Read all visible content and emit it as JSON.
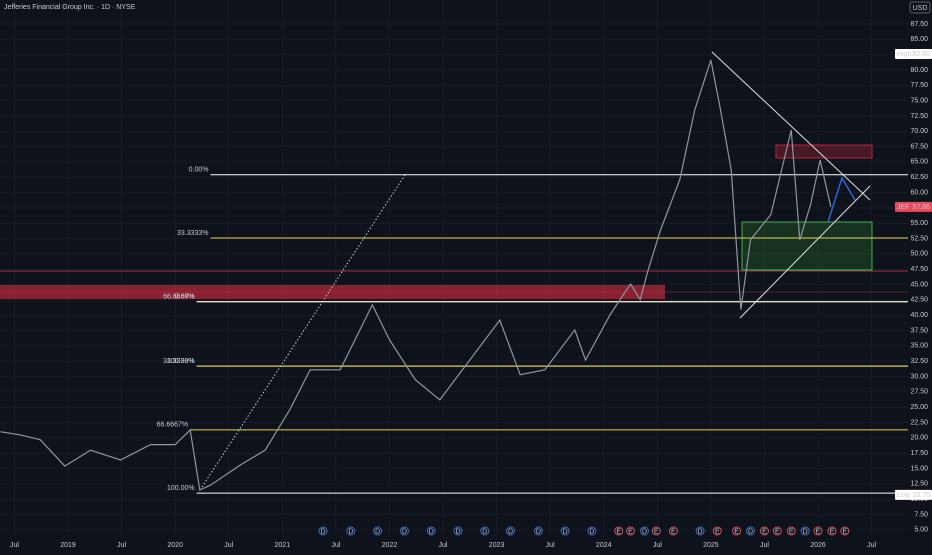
{
  "chart_data": {
    "type": "line",
    "title": "Jefferies Financial Group Inc. · 1D · NYSE",
    "currency": "USD",
    "xlim": [
      2018.365,
      2026.84
    ],
    "ylim": [
      4,
      91.4
    ],
    "xticks": [
      {
        "value": 2018.5,
        "label": "Jul"
      },
      {
        "value": 2019,
        "label": "2019"
      },
      {
        "value": 2019.5,
        "label": "Jul"
      },
      {
        "value": 2020,
        "label": "2020"
      },
      {
        "value": 2020.5,
        "label": "Jul"
      },
      {
        "value": 2021,
        "label": "2021"
      },
      {
        "value": 2021.5,
        "label": "Jul"
      },
      {
        "value": 2022,
        "label": "2022"
      },
      {
        "value": 2022.5,
        "label": "Jul"
      },
      {
        "value": 2023,
        "label": "2023"
      },
      {
        "value": 2023.5,
        "label": "Jul"
      },
      {
        "value": 2024,
        "label": "2024"
      },
      {
        "value": 2024.5,
        "label": "Jul"
      },
      {
        "value": 2025,
        "label": "2025"
      },
      {
        "value": 2025.5,
        "label": "Jul"
      },
      {
        "value": 2026,
        "label": "2026"
      },
      {
        "value": 2026.5,
        "label": "Jul"
      }
    ],
    "yticks": [
      {
        "value": 5,
        "label": "5.00"
      },
      {
        "value": 7.5,
        "label": "7.50"
      },
      {
        "value": 10,
        "label": "10.00"
      },
      {
        "value": 12.5,
        "label": "12.50"
      },
      {
        "value": 15,
        "label": "15.00"
      },
      {
        "value": 17.5,
        "label": "17.50"
      },
      {
        "value": 20,
        "label": "20.00"
      },
      {
        "value": 22.5,
        "label": "22.50"
      },
      {
        "value": 25,
        "label": "25.00"
      },
      {
        "value": 27.5,
        "label": "27.50"
      },
      {
        "value": 30,
        "label": "30.00"
      },
      {
        "value": 32.5,
        "label": "32.50"
      },
      {
        "value": 35,
        "label": "35.00"
      },
      {
        "value": 37.5,
        "label": "37.50"
      },
      {
        "value": 40,
        "label": "40.00"
      },
      {
        "value": 42.5,
        "label": "42.50"
      },
      {
        "value": 45,
        "label": "45.00"
      },
      {
        "value": 47.5,
        "label": "47.50"
      },
      {
        "value": 50,
        "label": "50.00"
      },
      {
        "value": 52.5,
        "label": "52.50"
      },
      {
        "value": 55,
        "label": "55.00"
      },
      {
        "value": 57.5,
        "label": "57.50"
      },
      {
        "value": 60,
        "label": "60.00"
      },
      {
        "value": 62.5,
        "label": "62.50"
      },
      {
        "value": 65,
        "label": "65.00"
      },
      {
        "value": 67.5,
        "label": "67.50"
      },
      {
        "value": 70,
        "label": "70.00"
      },
      {
        "value": 72.5,
        "label": "72.50"
      },
      {
        "value": 75,
        "label": "75.00"
      },
      {
        "value": 77.5,
        "label": "77.50"
      },
      {
        "value": 80,
        "label": "80.00"
      },
      {
        "value": 82.5,
        "label": "82.50"
      },
      {
        "value": 85,
        "label": "85.00"
      },
      {
        "value": 87.5,
        "label": "87.50"
      }
    ],
    "grid": true,
    "series": [
      {
        "name": "JEF",
        "color": "#8f969f",
        "x": [
          2018.37,
          2018.55,
          2018.74,
          2018.97,
          2019.21,
          2019.49,
          2019.77,
          2020.0,
          2020.14,
          2020.23,
          2020.33,
          2020.61,
          2020.84,
          2021.07,
          2021.26,
          2021.54,
          2021.84,
          2022.0,
          2022.24,
          2022.47,
          2022.75,
          2023.03,
          2023.22,
          2023.45,
          2023.73,
          2023.83,
          2024.06,
          2024.25,
          2024.34,
          2024.41,
          2024.53,
          2024.71,
          2024.85,
          2025.0,
          2025.09,
          2025.19,
          2025.28,
          2025.37,
          2025.56,
          2025.75,
          2025.83,
          2025.93,
          2026.02,
          2026.12
        ],
        "values": [
          21.0,
          20.5,
          19.7,
          15.4,
          18.0,
          16.4,
          18.9,
          18.9,
          21.3,
          11.5,
          12.3,
          15.6,
          18.0,
          24.6,
          31.1,
          31.1,
          41.7,
          36.0,
          29.5,
          26.2,
          32.7,
          39.2,
          30.3,
          31.1,
          37.6,
          32.7,
          40.1,
          45.1,
          42.5,
          47.1,
          53.9,
          62.1,
          73.5,
          81.6,
          73.5,
          63.7,
          40.9,
          52.3,
          56.4,
          70.2,
          52.3,
          58.0,
          65.3,
          57.66
        ]
      }
    ],
    "price_labels": [
      {
        "label": "High",
        "value": 82.6,
        "value_label": "82.60",
        "color": "#ffffff"
      },
      {
        "label": "JEF",
        "value": 57.66,
        "value_label": "57.66",
        "color": "#e84a5f"
      },
      {
        "label": "Low",
        "value": 10.7,
        "value_label": "10.70",
        "color": "#ffffff"
      }
    ],
    "fib_levels": [
      {
        "label": "0.00%",
        "value": 62.9,
        "x0": 2020.33,
        "color": "#ffffff"
      },
      {
        "label": "33.3333%",
        "value": 52.6,
        "x0": 2020.33,
        "color": "#e6d23c"
      },
      {
        "label": "66.6667%",
        "value": 42.2,
        "x0": 2020.2,
        "color": "#e6d23c"
      },
      {
        "label": "0.00%",
        "value": 42.2,
        "x0": 2020.2,
        "color": "#ffffff"
      },
      {
        "label": "100.00%",
        "value": 31.7,
        "x0": 2020.2,
        "color": "#ffffff"
      },
      {
        "label": "33.3333%",
        "value": 31.7,
        "x0": 2020.2,
        "color": "#e6d23c"
      },
      {
        "label": "66.6667%",
        "value": 21.3,
        "x0": 2020.14,
        "color": "#e6d23c"
      },
      {
        "label": "100.00%",
        "value": 11.0,
        "x0": 2020.2,
        "color": "#ffffff"
      }
    ],
    "events": [
      {
        "x": 2021.38,
        "label": "D"
      },
      {
        "x": 2021.64,
        "label": "D"
      },
      {
        "x": 2021.89,
        "label": "D"
      },
      {
        "x": 2022.14,
        "label": "D"
      },
      {
        "x": 2022.39,
        "label": "D"
      },
      {
        "x": 2022.64,
        "label": "D"
      },
      {
        "x": 2022.89,
        "label": "D"
      },
      {
        "x": 2023.13,
        "label": "D"
      },
      {
        "x": 2023.39,
        "label": "D"
      },
      {
        "x": 2023.64,
        "label": "D"
      },
      {
        "x": 2023.89,
        "label": "D"
      },
      {
        "x": 2024.14,
        "label": "E"
      },
      {
        "x": 2024.25,
        "label": "E"
      },
      {
        "x": 2024.38,
        "label": "D"
      },
      {
        "x": 2024.49,
        "label": "E"
      },
      {
        "x": 2024.65,
        "label": "E"
      },
      {
        "x": 2024.9,
        "label": "D"
      },
      {
        "x": 2025.06,
        "label": "E"
      },
      {
        "x": 2025.24,
        "label": "E"
      },
      {
        "x": 2025.37,
        "label": "D"
      },
      {
        "x": 2025.5,
        "label": "E"
      },
      {
        "x": 2025.62,
        "label": "E"
      },
      {
        "x": 2025.75,
        "label": "E"
      },
      {
        "x": 2025.88,
        "label": "D"
      },
      {
        "x": 2026.0,
        "label": "E"
      },
      {
        "x": 2026.13,
        "label": "E"
      },
      {
        "x": 2026.25,
        "label": "E"
      }
    ]
  }
}
